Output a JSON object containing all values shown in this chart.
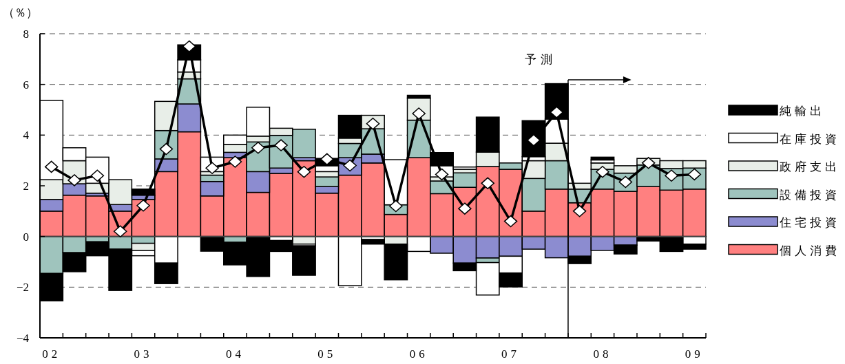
{
  "chart_data": {
    "type": "bar",
    "stacked": true,
    "ylabel": "（％）",
    "ylim": [
      -4,
      8
    ],
    "yticks": [
      -4,
      -2,
      0,
      2,
      4,
      6,
      8
    ],
    "grid": "y",
    "legend": "right",
    "annotations": [
      "予測"
    ],
    "categories": [
      "02",
      null,
      null,
      null,
      "03",
      null,
      null,
      null,
      "04",
      null,
      null,
      null,
      "05",
      null,
      null,
      null,
      "06",
      null,
      null,
      null,
      "07",
      null,
      null,
      null,
      "08",
      null,
      null,
      null,
      "09"
    ],
    "series": [
      {
        "name": "個人消費",
        "color": "#ff8080",
        "values": [
          1.0,
          1.63,
          1.6,
          1.0,
          1.46,
          2.56,
          4.13,
          1.6,
          3.11,
          1.74,
          2.49,
          2.99,
          1.71,
          2.42,
          2.9,
          0.87,
          3.11,
          1.69,
          1.94,
          2.76,
          2.65,
          1.0,
          1.87,
          1.33,
          1.87,
          1.78,
          1.97,
          1.83,
          1.87
        ]
      },
      {
        "name": "住宅投資",
        "color": "#8c8cd0",
        "values": [
          0.46,
          0.45,
          0.11,
          0.26,
          0.17,
          0.5,
          1.1,
          0.57,
          0.21,
          0.82,
          0.21,
          0.12,
          0.26,
          0.69,
          0.35,
          0,
          0,
          -0.66,
          -1.05,
          -0.85,
          -0.78,
          -0.5,
          -0.84,
          -0.78,
          -0.55,
          -0.34,
          0,
          0,
          0
        ]
      },
      {
        "name": "設備投資",
        "color": "#9fc4bd",
        "values": [
          -1.46,
          -0.64,
          -0.21,
          -0.5,
          -0.27,
          1.12,
          0.99,
          0.25,
          -0.23,
          1.17,
          1.29,
          1.12,
          0.38,
          0.56,
          1.0,
          0.38,
          1.48,
          0.5,
          0.57,
          -0.18,
          0.25,
          1.29,
          1.12,
          0.54,
          0.78,
          0.72,
          0.85,
          0.85,
          0.83
        ]
      },
      {
        "name": "政府支出",
        "color": "#e8eee8",
        "values": [
          0.78,
          0.91,
          0.39,
          0.98,
          -0.28,
          1.15,
          0.27,
          0.14,
          0.31,
          0.23,
          0.28,
          -0.3,
          0.21,
          0.21,
          0.53,
          -0.3,
          0.87,
          0.16,
          0.14,
          0.57,
          0,
          0.7,
          0.69,
          0.23,
          0.25,
          0.29,
          0.26,
          0.31,
          0.29
        ]
      },
      {
        "name": "在庫投資",
        "color": "#ffffff",
        "values": [
          3.13,
          0.51,
          1.03,
          0,
          -0.21,
          -1.05,
          0.48,
          0.57,
          0.37,
          1.14,
          -0.16,
          -0.07,
          0.23,
          -1.94,
          -0.12,
          1.78,
          -0.59,
          0.44,
          0.09,
          -1.28,
          -0.66,
          0.16,
          0.95,
          0,
          0.12,
          0,
          0,
          0,
          -0.3
        ]
      },
      {
        "name": "純輸出",
        "color": "#000000",
        "values": [
          -1.08,
          -0.75,
          -0.55,
          -1.63,
          0.24,
          -0.81,
          0.59,
          -0.58,
          -0.89,
          -1.58,
          -0.43,
          -1.16,
          0.29,
          0.9,
          -0.18,
          -1.41,
          0.11,
          0.52,
          -0.3,
          1.38,
          -0.55,
          1.42,
          1.4,
          -0.29,
          0.11,
          -0.35,
          -0.18,
          -0.59,
          -0.2
        ]
      },
      {
        "type": "line",
        "color": "#000000",
        "marker": "diamond",
        "values": [
          2.75,
          2.22,
          2.4,
          0.2,
          1.22,
          3.45,
          7.5,
          2.7,
          2.95,
          3.5,
          3.6,
          2.55,
          3.05,
          2.8,
          4.45,
          1.2,
          4.85,
          2.45,
          1.1,
          2.1,
          0.6,
          3.8,
          4.9,
          1.0,
          2.55,
          2.15,
          2.9,
          2.4,
          2.45
        ]
      }
    ]
  }
}
